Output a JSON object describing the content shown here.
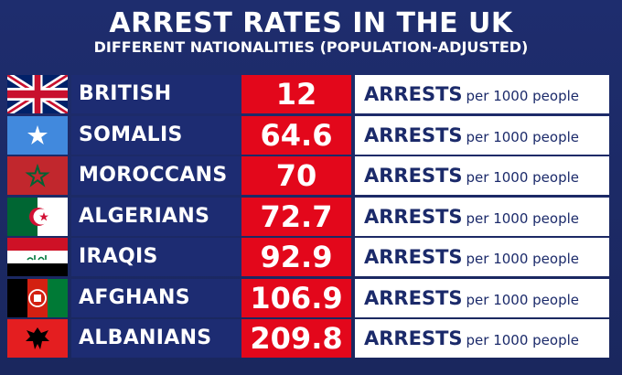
{
  "header": {
    "title": "ARREST RATES IN THE UK",
    "subtitle": "DIFFERENT NATIONALITIES (POPULATION-ADJUSTED)"
  },
  "colors": {
    "background": "#1c2a66",
    "name_cell": "#1d2c72",
    "value_cell": "#e3071b",
    "label_cell": "#ffffff",
    "label_text": "#1b2a6a"
  },
  "chart_data": {
    "type": "table",
    "title": "ARREST RATES IN THE UK",
    "subtitle": "DIFFERENT NATIONALITIES (POPULATION-ADJUSTED)",
    "unit_main": "ARRESTS",
    "unit_sub": "per 1000 people",
    "categories": [
      "BRITISH",
      "SOMALIS",
      "MOROCCANS",
      "ALGERIANS",
      "IRAQIS",
      "AFGHANS",
      "ALBANIANS"
    ],
    "values": [
      12,
      64.6,
      70,
      72.7,
      92.9,
      106.9,
      209.8
    ],
    "value_labels": [
      "12",
      "64.6",
      "70",
      "72.7",
      "92.9",
      "106.9",
      "209.8"
    ],
    "flags": [
      "uk-flag-icon",
      "somalia-flag-icon",
      "morocco-flag-icon",
      "algeria-flag-icon",
      "iraq-flag-icon",
      "afghanistan-flag-icon",
      "albania-flag-icon"
    ]
  }
}
